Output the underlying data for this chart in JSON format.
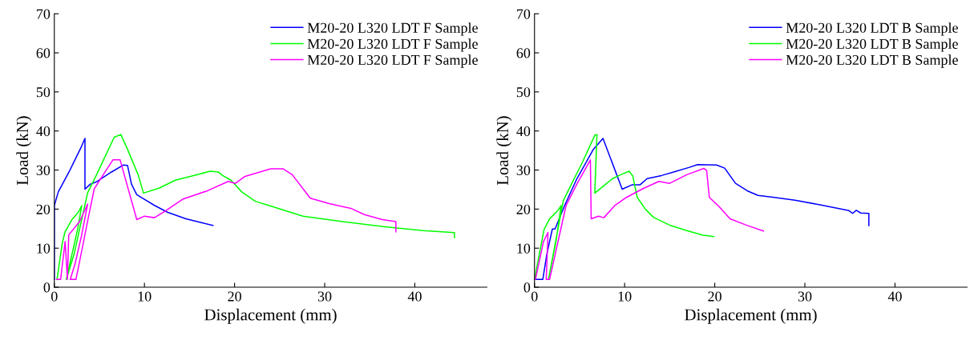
{
  "chart_data": [
    {
      "type": "line",
      "xlabel": "Displacement (mm)",
      "ylabel": "Load (kN)",
      "xlim": [
        0,
        48
      ],
      "ylim": [
        0,
        70
      ],
      "xticks": [
        0,
        10,
        20,
        30,
        40
      ],
      "yticks": [
        0,
        10,
        20,
        30,
        40,
        50,
        60,
        70
      ],
      "grid": false,
      "legend": "top right",
      "marker": "none",
      "line_style": "solid",
      "series": [
        {
          "name": "M20-20 L320 LDT F Sample",
          "color": "#0000ff",
          "x": [
            0,
            0,
            0.44,
            1.63,
            2.2,
            2.95,
            3.4,
            3.4,
            4.0,
            4.7,
            6.35,
            7.68,
            8.12,
            8.56,
            9.15,
            11.07,
            12.55,
            14.6,
            16.4,
            17.6
          ],
          "values": [
            2,
            20.9,
            24.4,
            29.5,
            32.2,
            35.7,
            38.1,
            25.1,
            26.4,
            27,
            29.5,
            31.3,
            31.2,
            26.4,
            23.7,
            21,
            19.2,
            17.5,
            16.5,
            15.8
          ]
        },
        {
          "name": "M20-20 L320 LDT F Sample",
          "color": "#00ff00",
          "x": [
            0.3,
            0.89,
            1.18,
            1.92,
            2.66,
            3.04,
            2.6,
            1.33,
            2.2,
            3.1,
            3.7,
            4.58,
            5.46,
            6.65,
            7.38,
            8.12,
            9.3,
            9.9,
            11.66,
            13.43,
            15.8,
            17.3,
            18.16,
            18.75,
            19.6,
            20.8,
            22.3,
            24.7,
            27.6,
            32.0,
            36.5,
            40.9,
            44.4,
            44.4
          ],
          "values": [
            2,
            11.4,
            14.1,
            17.2,
            19.2,
            20.9,
            15,
            2,
            8.5,
            18,
            24.2,
            28.3,
            32.6,
            38.4,
            39.1,
            35.3,
            28.8,
            24.1,
            25.4,
            27.4,
            28.8,
            29.7,
            29.5,
            28.5,
            27.4,
            24.4,
            22,
            20.3,
            18.2,
            16.8,
            15.5,
            14.5,
            14,
            12.7
          ]
        },
        {
          "name": "M20-20 L320 LDT F Sample",
          "color": "#ff00ff",
          "x": [
            0.25,
            0.7,
            1.2,
            1.45,
            1.6,
            2.8,
            3.7,
            3.0,
            2.3,
            1.77,
            2.4,
            3.1,
            3.7,
            4.43,
            5.76,
            6.5,
            7.3,
            9.15,
            10.0,
            11.1,
            12.3,
            14.3,
            17.0,
            19.3,
            20.1,
            21.1,
            24.0,
            25.4,
            26.4,
            28.4,
            30.5,
            32.9,
            34.4,
            36.4,
            37.9,
            37.9
          ],
          "values": [
            2,
            2,
            11.7,
            2,
            13.4,
            16.8,
            21.3,
            13,
            6,
            2,
            2,
            10,
            17,
            25.2,
            30,
            32.6,
            32.6,
            17.3,
            18.2,
            17.8,
            19.5,
            22.6,
            24.7,
            27.1,
            26.6,
            28.3,
            30.3,
            30.3,
            28.8,
            22.8,
            21.4,
            20.2,
            18.6,
            17.3,
            16.8,
            14.2
          ]
        }
      ]
    },
    {
      "type": "line",
      "xlabel": "Displacement (mm)",
      "ylabel": "Load (kN)",
      "xlim": [
        0,
        48
      ],
      "ylim": [
        0,
        70
      ],
      "xticks": [
        0,
        10,
        20,
        30,
        40
      ],
      "yticks": [
        0,
        10,
        20,
        30,
        40,
        50,
        60,
        70
      ],
      "grid": false,
      "legend": "top right",
      "marker": "none",
      "line_style": "solid",
      "series": [
        {
          "name": "M20-20 L320 LDT B Sample",
          "color": "#0000ff",
          "x": [
            0,
            0.92,
            1.37,
            1.98,
            2.28,
            3.34,
            4.71,
            5.62,
            6.53,
            7.6,
            9.73,
            10.8,
            11.7,
            12.5,
            14.1,
            15.6,
            17.2,
            18.1,
            20.2,
            21.1,
            22.3,
            23.6,
            24.8,
            26.6,
            28.9,
            31.9,
            34.9,
            35.3,
            35.7,
            36.2,
            37.1,
            37.1
          ],
          "values": [
            2,
            2,
            8.5,
            14.9,
            14.9,
            20.9,
            27.8,
            31.5,
            35.3,
            38.1,
            25.1,
            26.2,
            26.2,
            27.8,
            28.6,
            29.6,
            30.7,
            31.4,
            31.3,
            30.5,
            26.6,
            24.7,
            23.5,
            23.0,
            22.3,
            21.0,
            19.6,
            18.9,
            19.7,
            19.0,
            18.9,
            15.8
          ]
        },
        {
          "name": "M20-20 L320 LDT B Sample",
          "color": "#00ff00",
          "x": [
            0,
            1.06,
            1.67,
            2.58,
            2.95,
            2.4,
            1.55,
            3.2,
            4.1,
            5.3,
            6.69,
            6.93,
            6.69,
            7.75,
            8.66,
            9.57,
            10.5,
            10.9,
            11.4,
            12.3,
            13.2,
            15.0,
            16.9,
            18.7,
            19.9
          ],
          "values": [
            2,
            14.8,
            17.5,
            19.6,
            20.9,
            12,
            2,
            22.2,
            26.4,
            31.9,
            38.9,
            39.1,
            24.1,
            26.1,
            27.8,
            28.8,
            29.7,
            28.5,
            23.0,
            20,
            17.9,
            15.9,
            14.5,
            13.3,
            13.0
          ]
        },
        {
          "name": "M20-20 L320 LDT B Sample",
          "color": "#ff00ff",
          "x": [
            0.1,
            1.0,
            1.5,
            1.3,
            1.67,
            3.5,
            4.7,
            6.2,
            6.29,
            7.1,
            7.7,
            8.9,
            10.2,
            12.0,
            13.8,
            15.0,
            16.9,
            18.8,
            19.1,
            19.4,
            20.5,
            21.7,
            23.5,
            25.4
          ],
          "values": [
            2,
            11.7,
            14,
            2,
            2,
            20.9,
            26.4,
            32.6,
            17.5,
            18.2,
            17.8,
            20.9,
            23,
            25.2,
            27.1,
            26.6,
            28.8,
            30.4,
            29.9,
            23.0,
            20.6,
            17.5,
            15.9,
            14.4
          ]
        }
      ]
    }
  ]
}
